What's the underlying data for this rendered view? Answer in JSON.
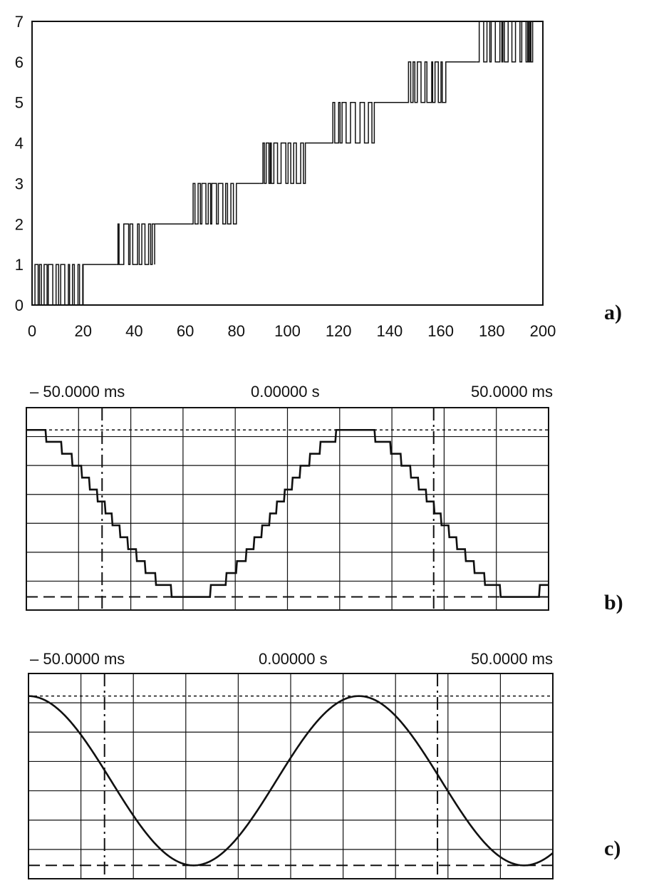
{
  "chart_data": [
    {
      "type": "line",
      "panel_label": "a)",
      "xlim": [
        0,
        200
      ],
      "ylim": [
        0,
        7
      ],
      "x_ticks": [
        "0",
        "20",
        "40",
        "60",
        "80",
        "100",
        "120",
        "140",
        "160",
        "180",
        "200"
      ],
      "y_ticks": [
        "0",
        "1",
        "2",
        "3",
        "4",
        "5",
        "6",
        "7"
      ],
      "step_levels": [
        {
          "level": 0,
          "from": 0,
          "to": 20
        },
        {
          "level": 1,
          "from": 20,
          "to": 50
        },
        {
          "level": 2,
          "from": 50,
          "to": 80
        },
        {
          "level": 3,
          "from": 80,
          "to": 107
        },
        {
          "level": 4,
          "from": 107,
          "to": 134
        },
        {
          "level": 5,
          "from": 134,
          "to": 162
        },
        {
          "level": 6,
          "from": 162,
          "to": 196
        }
      ],
      "dither_bursts": [
        {
          "low": 0,
          "high": 1,
          "x_start": 0,
          "x_end": 20
        },
        {
          "low": 1,
          "high": 2,
          "x_start": 33,
          "x_end": 48
        },
        {
          "low": 2,
          "high": 3,
          "x_start": 62,
          "x_end": 80
        },
        {
          "low": 3,
          "high": 4,
          "x_start": 89,
          "x_end": 107
        },
        {
          "low": 4,
          "high": 5,
          "x_start": 117,
          "x_end": 134
        },
        {
          "low": 5,
          "high": 6,
          "x_start": 147,
          "x_end": 162
        },
        {
          "low": 6,
          "high": 7,
          "x_start": 174,
          "x_end": 196
        }
      ],
      "grid": false
    },
    {
      "type": "line",
      "panel_label": "b)",
      "header_left": "– 50.0000 ms",
      "header_center": "0.00000 s",
      "header_right": "50.0000 ms",
      "waveform": "quantized sine (stepped)",
      "step_count": 14,
      "grid": true,
      "grid_divisions": {
        "x": 10,
        "y": 7
      }
    },
    {
      "type": "line",
      "panel_label": "c)",
      "header_left": "– 50.0000 ms",
      "header_center": "0.00000 s",
      "header_right": "50.0000 ms",
      "waveform": "smooth sine",
      "grid": true,
      "grid_divisions": {
        "x": 10,
        "y": 7
      }
    }
  ]
}
